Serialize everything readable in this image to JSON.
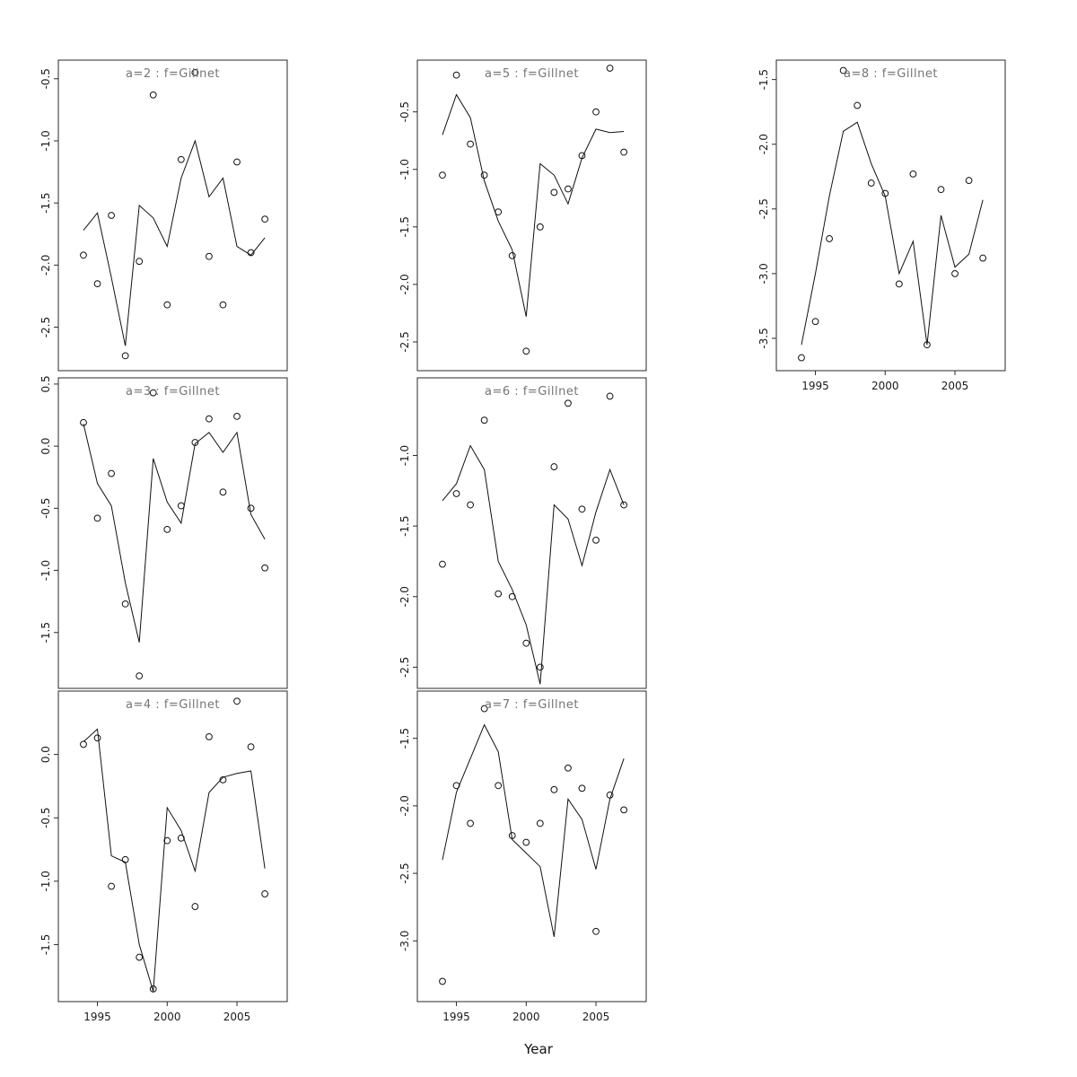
{
  "chart_data": {
    "type": "line",
    "title": "",
    "xlabel": "Year",
    "xlim": [
      1992.2,
      2008.6
    ],
    "xticks": [
      1995,
      2000,
      2005
    ],
    "x": [
      1994,
      1995,
      1996,
      1997,
      1998,
      1999,
      2000,
      2001,
      2002,
      2003,
      2004,
      2005,
      2006,
      2007
    ],
    "point_style": {
      "marker": "open-circle",
      "color": "#111111"
    },
    "line_style": {
      "color": "#111111",
      "width": 1
    },
    "title_color": "#757575",
    "panels": [
      {
        "title": "a=2 : f=Gillnet",
        "ylim": [
          -2.85,
          -0.35
        ],
        "yticks": [
          -0.5,
          -1.0,
          -1.5,
          -2.0,
          -2.5
        ],
        "show_x_axis": false,
        "points": [
          -1.92,
          -2.15,
          -1.6,
          -2.73,
          -1.97,
          -0.63,
          -2.32,
          -1.15,
          -0.45,
          -1.93,
          -2.32,
          -1.17,
          -1.9,
          -1.63
        ],
        "line": [
          -1.72,
          -1.58,
          -2.1,
          -2.65,
          -1.52,
          -1.62,
          -1.85,
          -1.3,
          -1.0,
          -1.45,
          -1.3,
          -1.85,
          -1.92,
          -1.78
        ]
      },
      {
        "title": "a=3 : f=Gillnet",
        "ylim": [
          -1.95,
          0.55
        ],
        "yticks": [
          0.5,
          0.0,
          -0.5,
          -1.0,
          -1.5
        ],
        "show_x_axis": false,
        "points": [
          0.19,
          -0.58,
          -0.22,
          -1.27,
          -1.85,
          0.43,
          -0.67,
          -0.48,
          0.03,
          0.22,
          -0.37,
          0.24,
          -0.5,
          -0.98
        ],
        "line": [
          0.18,
          -0.3,
          -0.48,
          -1.1,
          -1.58,
          -0.1,
          -0.45,
          -0.62,
          0.02,
          0.11,
          -0.05,
          0.11,
          -0.55,
          -0.75
        ]
      },
      {
        "title": "a=4 : f=Gillnet",
        "ylim": [
          -1.95,
          0.5
        ],
        "yticks": [
          0.0,
          -0.5,
          -1.0,
          -1.5
        ],
        "show_x_axis": true,
        "points": [
          0.08,
          0.13,
          -1.04,
          -0.83,
          -1.6,
          -1.85,
          -0.68,
          -0.66,
          -1.2,
          0.14,
          -0.2,
          0.42,
          0.06,
          -1.1
        ],
        "line": [
          0.1,
          0.2,
          -0.8,
          -0.85,
          -1.5,
          -1.87,
          -0.42,
          -0.6,
          -0.92,
          -0.3,
          -0.18,
          -0.15,
          -0.13,
          -0.9
        ]
      },
      {
        "title": "a=5 : f=Gillnet",
        "ylim": [
          -2.75,
          -0.05
        ],
        "yticks": [
          -0.5,
          -1.0,
          -1.5,
          -2.0,
          -2.5
        ],
        "show_x_axis": false,
        "points": [
          -1.05,
          -0.18,
          -0.78,
          -1.05,
          -1.37,
          -1.75,
          -2.58,
          -1.5,
          -1.2,
          -1.17,
          -0.88,
          -0.5,
          -0.12,
          -0.85
        ],
        "line": [
          -0.7,
          -0.35,
          -0.55,
          -1.1,
          -1.45,
          -1.7,
          -2.28,
          -0.95,
          -1.05,
          -1.3,
          -0.9,
          -0.65,
          -0.68,
          -0.67
        ]
      },
      {
        "title": "a=6 : f=Gillnet",
        "ylim": [
          -2.65,
          -0.45
        ],
        "yticks": [
          -1.0,
          -1.5,
          -2.0,
          -2.5
        ],
        "show_x_axis": false,
        "points": [
          -1.77,
          -1.27,
          -1.35,
          -0.75,
          -1.98,
          -2.0,
          -2.33,
          -2.5,
          -1.08,
          -0.63,
          -1.38,
          -1.6,
          -0.58,
          -1.35
        ],
        "line": [
          -1.32,
          -1.2,
          -0.93,
          -1.1,
          -1.75,
          -1.95,
          -2.2,
          -2.62,
          -1.35,
          -1.45,
          -1.78,
          -1.4,
          -1.1,
          -1.35
        ]
      },
      {
        "title": "a=7 : f=Gillnet",
        "ylim": [
          -3.45,
          -1.15
        ],
        "yticks": [
          -1.5,
          -2.0,
          -2.5,
          -3.0
        ],
        "show_x_axis": true,
        "points": [
          -3.3,
          -1.85,
          -2.13,
          -1.28,
          -1.85,
          -2.22,
          -2.27,
          -2.13,
          -1.88,
          -1.72,
          -1.87,
          -2.93,
          -1.92,
          -2.03
        ],
        "line": [
          -2.4,
          -1.9,
          -1.65,
          -1.4,
          -1.6,
          -2.25,
          -2.35,
          -2.45,
          -2.97,
          -1.95,
          -2.1,
          -2.47,
          -1.95,
          -1.65
        ]
      },
      {
        "title": "a=8 : f=Gillnet",
        "ylim": [
          -3.75,
          -1.35
        ],
        "yticks": [
          -1.5,
          -2.0,
          -2.5,
          -3.0,
          -3.5
        ],
        "show_x_axis": true,
        "points": [
          -3.65,
          -3.37,
          -2.73,
          -1.43,
          -1.7,
          -2.3,
          -2.38,
          -3.08,
          -2.23,
          -3.55,
          -2.35,
          -3.0,
          -2.28,
          -2.88
        ],
        "line": [
          -3.55,
          -3.0,
          -2.4,
          -1.9,
          -1.83,
          -2.15,
          -2.4,
          -3.0,
          -2.75,
          -3.55,
          -2.55,
          -2.95,
          -2.85,
          -2.43
        ]
      }
    ]
  }
}
